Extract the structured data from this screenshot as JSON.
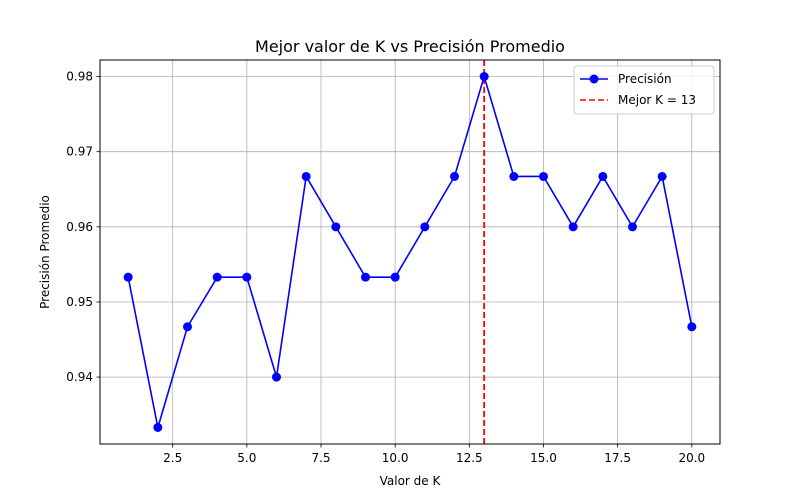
{
  "chart_data": {
    "type": "line",
    "title": "Mejor valor de K vs Precisión Promedio",
    "xlabel": "Valor de K",
    "ylabel": "Precisión Promedio",
    "xlim": [
      0.05,
      20.95
    ],
    "ylim": [
      0.9311,
      0.9822
    ],
    "xticks": [
      2.5,
      5.0,
      7.5,
      10.0,
      12.5,
      15.0,
      17.5,
      20.0
    ],
    "xtick_labels": [
      "2.5",
      "5.0",
      "7.5",
      "10.0",
      "12.5",
      "15.0",
      "17.5",
      "20.0"
    ],
    "yticks": [
      0.94,
      0.95,
      0.96,
      0.97,
      0.98
    ],
    "ytick_labels": [
      "0.94",
      "0.95",
      "0.96",
      "0.97",
      "0.98"
    ],
    "grid": true,
    "legend_position": "top-right",
    "series": [
      {
        "name": "Precisión",
        "color": "#0000ff",
        "marker": "circle",
        "x": [
          1,
          2,
          3,
          4,
          5,
          6,
          7,
          8,
          9,
          10,
          11,
          12,
          13,
          14,
          15,
          16,
          17,
          18,
          19,
          20
        ],
        "y": [
          0.9533,
          0.9333,
          0.9467,
          0.9533,
          0.9533,
          0.94,
          0.9667,
          0.96,
          0.9533,
          0.9533,
          0.96,
          0.9667,
          0.98,
          0.9667,
          0.9667,
          0.96,
          0.9667,
          0.96,
          0.9667,
          0.9467
        ]
      }
    ],
    "vline": {
      "name": "Mejor K = 13",
      "x": 13,
      "color": "#ff0000",
      "style": "dashed"
    }
  }
}
